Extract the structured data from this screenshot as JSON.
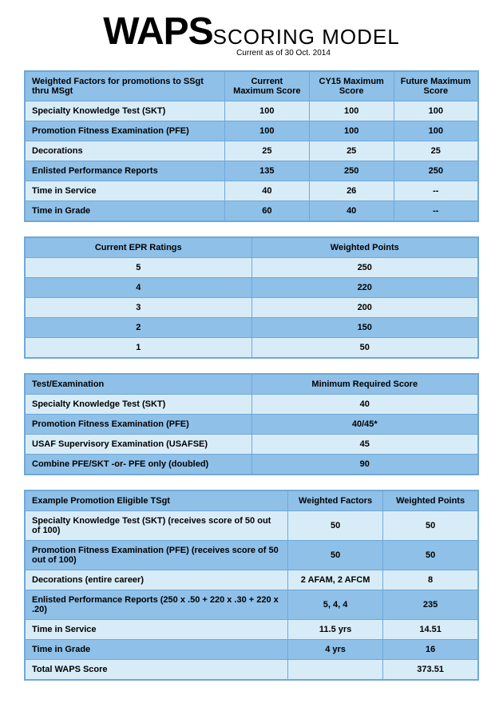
{
  "title_big": "WAPS",
  "title_small": "SCORING MODEL",
  "subtitle": "Current as of 30 Oct. 2014",
  "colors": {
    "border": "#6fa8d8",
    "header_bg": "#8fc0e8",
    "row_light": "#d8ecf8",
    "row_dark": "#8fc0e8",
    "text": "#000000",
    "page_bg": "#ffffff"
  },
  "typography": {
    "big_fontsize": 48,
    "small_fontsize": 26,
    "subtitle_fontsize": 10,
    "table_fontsize": 11
  },
  "table1": {
    "headers": [
      "Weighted Factors for promotions to SSgt thru MSgt",
      "Current Maximum Score",
      "CY15 Maximum Score",
      "Future Maximum Score"
    ],
    "rows": [
      [
        "Specialty Knowledge Test (SKT)",
        "100",
        "100",
        "100"
      ],
      [
        "Promotion Fitness Examination (PFE)",
        "100",
        "100",
        "100"
      ],
      [
        "Decorations",
        "25",
        "25",
        "25"
      ],
      [
        "Enlisted Performance Reports",
        "135",
        "250",
        "250"
      ],
      [
        "Time in Service",
        "40",
        "26",
        "--"
      ],
      [
        "Time in Grade",
        "60",
        "40",
        "--"
      ]
    ]
  },
  "table2": {
    "headers": [
      "Current EPR Ratings",
      "Weighted Points"
    ],
    "rows": [
      [
        "5",
        "250"
      ],
      [
        "4",
        "220"
      ],
      [
        "3",
        "200"
      ],
      [
        "2",
        "150"
      ],
      [
        "1",
        "50"
      ]
    ]
  },
  "table3": {
    "headers": [
      "Test/Examination",
      "Minimum Required Score"
    ],
    "rows": [
      [
        "Specialty Knowledge Test (SKT)",
        "40"
      ],
      [
        "Promotion Fitness Examination (PFE)",
        "40/45*"
      ],
      [
        "USAF Supervisory Examination (USAFSE)",
        "45"
      ],
      [
        "Combine PFE/SKT -or- PFE only (doubled)",
        "90"
      ]
    ]
  },
  "table4": {
    "headers": [
      "Example Promotion Eligible TSgt",
      "Weighted Factors",
      "Weighted Points"
    ],
    "rows": [
      [
        "Specialty Knowledge Test (SKT)  (receives score of 50 out of 100)",
        "50",
        "50"
      ],
      [
        "Promotion Fitness Examination (PFE) (receives score of 50 out of 100)",
        "50",
        "50"
      ],
      [
        "Decorations (entire career)",
        "2 AFAM, 2 AFCM",
        "8"
      ],
      [
        "Enlisted Performance Reports (250 x .50 + 220 x .30 + 220 x .20)",
        "5, 4, 4",
        "235"
      ],
      [
        "Time in Service",
        "11.5 yrs",
        "14.51"
      ],
      [
        "Time in Grade",
        "4 yrs",
        "16"
      ],
      [
        "Total WAPS Score",
        "",
        "373.51"
      ]
    ]
  }
}
